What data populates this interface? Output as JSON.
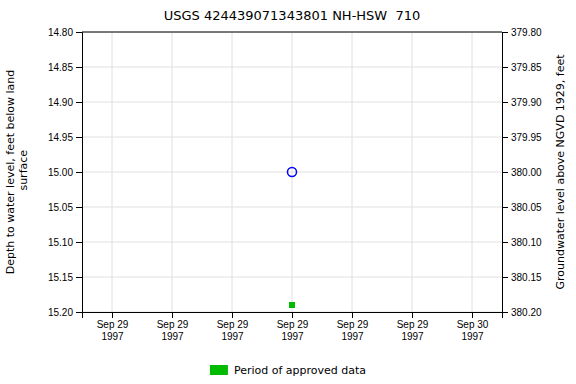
{
  "chart_data": {
    "type": "scatter",
    "title": "USGS 424439071343801 NH-HSW  710",
    "ylabel": "Depth to water level, feet below land\n surface",
    "y2label": "Groundwater level above NGVD 1929, feet",
    "categories": [
      "Sep 29\n1997",
      "Sep 29\n1997",
      "Sep 29\n1997",
      "Sep 29\n1997",
      "Sep 29\n1997",
      "Sep 29\n1997",
      "Sep 30\n1997"
    ],
    "series": [
      {
        "color": "blue",
        "marker": "open-circle",
        "values": [
          null,
          null,
          null,
          15.0,
          null,
          null,
          null
        ]
      },
      {
        "name": "Period of approved data",
        "color": "#00bb00",
        "marker": "square",
        "values": [
          null,
          null,
          null,
          15.19,
          null,
          null,
          null
        ]
      }
    ],
    "ylim": [
      15.2,
      14.8
    ],
    "yticks": [
      {
        "value": 14.8,
        "label": "14.80"
      },
      {
        "value": 14.85,
        "label": "14.85"
      },
      {
        "value": 14.9,
        "label": "14.90"
      },
      {
        "value": 14.95,
        "label": "14.95"
      },
      {
        "value": 15.0,
        "label": "15.00"
      },
      {
        "value": 15.05,
        "label": "15.05"
      },
      {
        "value": 15.1,
        "label": "15.10"
      },
      {
        "value": 15.15,
        "label": "15.15"
      },
      {
        "value": 15.2,
        "label": "15.20"
      }
    ],
    "y2lim": [
      380.2,
      379.8
    ],
    "y2ticks": [
      {
        "value": 380.2,
        "label": "380.20"
      },
      {
        "value": 380.15,
        "label": "380.15"
      },
      {
        "value": 380.1,
        "label": "380.10"
      },
      {
        "value": 380.05,
        "label": "380.05"
      },
      {
        "value": 380.0,
        "label": "380.00"
      },
      {
        "value": 379.95,
        "label": "379.95"
      },
      {
        "value": 379.9,
        "label": "379.90"
      },
      {
        "value": 379.85,
        "label": "379.85"
      },
      {
        "value": 379.8,
        "label": "379.80"
      }
    ],
    "grid": true,
    "legend": "bottom"
  }
}
